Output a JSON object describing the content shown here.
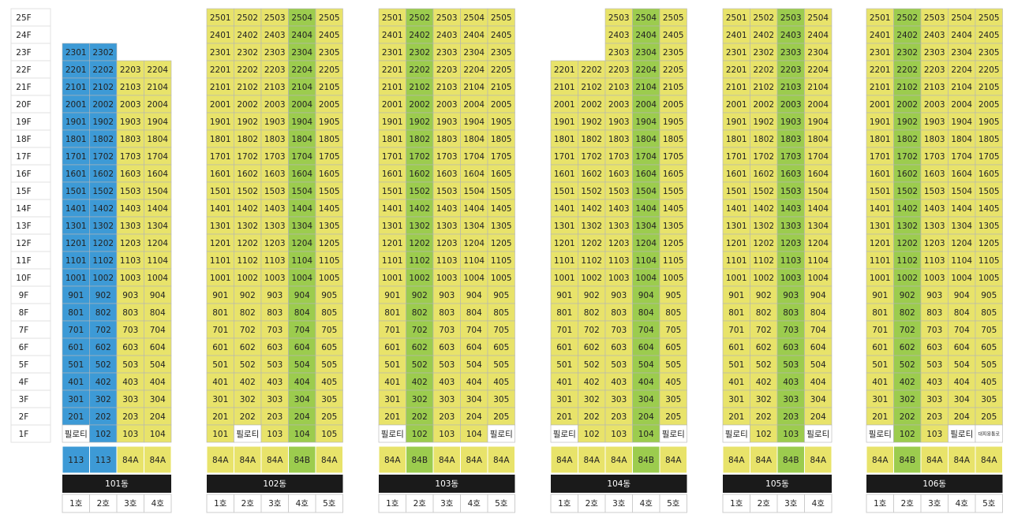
{
  "floors": [
    "25F",
    "24F",
    "23F",
    "22F",
    "21F",
    "20F",
    "19F",
    "18F",
    "17F",
    "16F",
    "15F",
    "14F",
    "13F",
    "12F",
    "11F",
    "10F",
    "9F",
    "8F",
    "7F",
    "6F",
    "5F",
    "4F",
    "3F",
    "2F",
    "1F"
  ],
  "buildings": [
    {
      "name": "101동",
      "columns": [
        {
          "line": "1호",
          "type": "113",
          "color": "#3d9ad6"
        },
        {
          "line": "2호",
          "type": "113",
          "color": "#3d9ad6"
        },
        {
          "line": "3호",
          "type": "84A",
          "color": "#e8e36a"
        },
        {
          "line": "4호",
          "type": "84A",
          "color": "#e8e36a"
        }
      ],
      "rows": [
        [
          null,
          null,
          null,
          null
        ],
        [
          null,
          null,
          null,
          null
        ],
        [
          2301,
          2302,
          null,
          null
        ],
        [
          2201,
          2202,
          2203,
          2204
        ],
        [
          2101,
          2102,
          2103,
          2104
        ],
        [
          2001,
          2002,
          2003,
          2004
        ],
        [
          1901,
          1902,
          1903,
          1904
        ],
        [
          1801,
          1802,
          1803,
          1804
        ],
        [
          1701,
          1702,
          1703,
          1704
        ],
        [
          1601,
          1602,
          1603,
          1604
        ],
        [
          1501,
          1502,
          1503,
          1504
        ],
        [
          1401,
          1402,
          1403,
          1404
        ],
        [
          1301,
          1302,
          1303,
          1304
        ],
        [
          1201,
          1202,
          1203,
          1204
        ],
        [
          1101,
          1102,
          1103,
          1104
        ],
        [
          1001,
          1002,
          1003,
          1004
        ],
        [
          901,
          902,
          903,
          904
        ],
        [
          801,
          802,
          803,
          804
        ],
        [
          701,
          702,
          703,
          704
        ],
        [
          601,
          602,
          603,
          604
        ],
        [
          501,
          502,
          503,
          504
        ],
        [
          401,
          402,
          403,
          404
        ],
        [
          301,
          302,
          303,
          304
        ],
        [
          201,
          202,
          203,
          204
        ],
        [
          "필로티",
          102,
          103,
          104
        ]
      ]
    },
    {
      "name": "102동",
      "columns": [
        {
          "line": "1호",
          "type": "84A",
          "color": "#e8e36a"
        },
        {
          "line": "2호",
          "type": "84A",
          "color": "#e8e36a"
        },
        {
          "line": "3호",
          "type": "84A",
          "color": "#e8e36a"
        },
        {
          "line": "4호",
          "type": "84B",
          "color": "#9ccc4e"
        },
        {
          "line": "5호",
          "type": "84A",
          "color": "#e8e36a"
        }
      ],
      "rows": [
        [
          2501,
          2502,
          2503,
          2504,
          2505
        ],
        [
          2401,
          2402,
          2403,
          2404,
          2405
        ],
        [
          2301,
          2302,
          2303,
          2304,
          2305
        ],
        [
          2201,
          2202,
          2203,
          2204,
          2205
        ],
        [
          2101,
          2102,
          2103,
          2104,
          2105
        ],
        [
          2001,
          2002,
          2003,
          2004,
          2005
        ],
        [
          1901,
          1902,
          1903,
          1904,
          1905
        ],
        [
          1801,
          1802,
          1803,
          1804,
          1805
        ],
        [
          1701,
          1702,
          1703,
          1704,
          1705
        ],
        [
          1601,
          1602,
          1603,
          1604,
          1605
        ],
        [
          1501,
          1502,
          1503,
          1504,
          1505
        ],
        [
          1401,
          1402,
          1403,
          1404,
          1405
        ],
        [
          1301,
          1302,
          1303,
          1304,
          1305
        ],
        [
          1201,
          1202,
          1203,
          1204,
          1205
        ],
        [
          1101,
          1102,
          1103,
          1104,
          1105
        ],
        [
          1001,
          1002,
          1003,
          1004,
          1005
        ],
        [
          901,
          902,
          903,
          904,
          905
        ],
        [
          801,
          802,
          803,
          804,
          805
        ],
        [
          701,
          702,
          703,
          704,
          705
        ],
        [
          601,
          602,
          603,
          604,
          605
        ],
        [
          501,
          502,
          503,
          504,
          505
        ],
        [
          401,
          402,
          403,
          404,
          405
        ],
        [
          301,
          302,
          303,
          304,
          305
        ],
        [
          201,
          202,
          203,
          204,
          205
        ],
        [
          101,
          "필로티",
          103,
          104,
          105
        ]
      ]
    },
    {
      "name": "103동",
      "columns": [
        {
          "line": "1호",
          "type": "84A",
          "color": "#e8e36a"
        },
        {
          "line": "2호",
          "type": "84B",
          "color": "#9ccc4e"
        },
        {
          "line": "3호",
          "type": "84A",
          "color": "#e8e36a"
        },
        {
          "line": "4호",
          "type": "84A",
          "color": "#e8e36a"
        },
        {
          "line": "5호",
          "type": "84A",
          "color": "#e8e36a"
        }
      ],
      "rows": [
        [
          2501,
          2502,
          2503,
          2504,
          2505
        ],
        [
          2401,
          2402,
          2403,
          2404,
          2405
        ],
        [
          2301,
          2302,
          2303,
          2304,
          2305
        ],
        [
          2201,
          2202,
          2203,
          2204,
          2205
        ],
        [
          2101,
          2102,
          2103,
          2104,
          2105
        ],
        [
          2001,
          2002,
          2003,
          2004,
          2005
        ],
        [
          1901,
          1902,
          1903,
          1904,
          1905
        ],
        [
          1801,
          1802,
          1803,
          1804,
          1805
        ],
        [
          1701,
          1702,
          1703,
          1704,
          1705
        ],
        [
          1601,
          1602,
          1603,
          1604,
          1605
        ],
        [
          1501,
          1502,
          1503,
          1504,
          1505
        ],
        [
          1401,
          1402,
          1403,
          1404,
          1405
        ],
        [
          1301,
          1302,
          1303,
          1304,
          1305
        ],
        [
          1201,
          1202,
          1203,
          1204,
          1205
        ],
        [
          1101,
          1102,
          1103,
          1104,
          1105
        ],
        [
          1001,
          1002,
          1003,
          1004,
          1005
        ],
        [
          901,
          902,
          903,
          904,
          905
        ],
        [
          801,
          802,
          803,
          804,
          805
        ],
        [
          701,
          702,
          703,
          704,
          705
        ],
        [
          601,
          602,
          603,
          604,
          605
        ],
        [
          501,
          502,
          503,
          504,
          505
        ],
        [
          401,
          402,
          403,
          404,
          405
        ],
        [
          301,
          302,
          303,
          304,
          305
        ],
        [
          201,
          202,
          203,
          204,
          205
        ],
        [
          "필로티",
          102,
          103,
          104,
          "필로티"
        ]
      ]
    },
    {
      "name": "104동",
      "columns": [
        {
          "line": "1호",
          "type": "84A",
          "color": "#e8e36a"
        },
        {
          "line": "2호",
          "type": "84A",
          "color": "#e8e36a"
        },
        {
          "line": "3호",
          "type": "84A",
          "color": "#e8e36a"
        },
        {
          "line": "4호",
          "type": "84B",
          "color": "#9ccc4e"
        },
        {
          "line": "5호",
          "type": "84A",
          "color": "#e8e36a"
        }
      ],
      "rows": [
        [
          null,
          null,
          2503,
          2504,
          2505
        ],
        [
          null,
          null,
          2403,
          2404,
          2405
        ],
        [
          null,
          null,
          2303,
          2304,
          2305
        ],
        [
          2201,
          2202,
          2203,
          2204,
          2205
        ],
        [
          2101,
          2102,
          2103,
          2104,
          2105
        ],
        [
          2001,
          2002,
          2003,
          2004,
          2005
        ],
        [
          1901,
          1902,
          1903,
          1904,
          1905
        ],
        [
          1801,
          1802,
          1803,
          1804,
          1805
        ],
        [
          1701,
          1702,
          1703,
          1704,
          1705
        ],
        [
          1601,
          1602,
          1603,
          1604,
          1605
        ],
        [
          1501,
          1502,
          1503,
          1504,
          1505
        ],
        [
          1401,
          1402,
          1403,
          1404,
          1405
        ],
        [
          1301,
          1302,
          1303,
          1304,
          1305
        ],
        [
          1201,
          1202,
          1203,
          1204,
          1205
        ],
        [
          1101,
          1102,
          1103,
          1104,
          1105
        ],
        [
          1001,
          1002,
          1003,
          1004,
          1005
        ],
        [
          901,
          902,
          903,
          904,
          905
        ],
        [
          801,
          802,
          803,
          804,
          805
        ],
        [
          701,
          702,
          703,
          704,
          705
        ],
        [
          601,
          602,
          603,
          604,
          605
        ],
        [
          501,
          502,
          503,
          504,
          505
        ],
        [
          401,
          402,
          403,
          404,
          405
        ],
        [
          301,
          302,
          303,
          304,
          305
        ],
        [
          201,
          202,
          203,
          204,
          205
        ],
        [
          "필로티",
          102,
          103,
          104,
          "필로티"
        ]
      ]
    },
    {
      "name": "105동",
      "columns": [
        {
          "line": "1호",
          "type": "84A",
          "color": "#e8e36a"
        },
        {
          "line": "2호",
          "type": "84A",
          "color": "#e8e36a"
        },
        {
          "line": "3호",
          "type": "84B",
          "color": "#9ccc4e"
        },
        {
          "line": "4호",
          "type": "84A",
          "color": "#e8e36a"
        }
      ],
      "rows": [
        [
          2501,
          2502,
          2503,
          2504
        ],
        [
          2401,
          2402,
          2403,
          2404
        ],
        [
          2301,
          2302,
          2303,
          2304
        ],
        [
          2201,
          2202,
          2203,
          2204
        ],
        [
          2101,
          2102,
          2103,
          2104
        ],
        [
          2001,
          2002,
          2003,
          2004
        ],
        [
          1901,
          1902,
          1903,
          1904
        ],
        [
          1801,
          1802,
          1803,
          1804
        ],
        [
          1701,
          1702,
          1703,
          1704
        ],
        [
          1601,
          1602,
          1603,
          1604
        ],
        [
          1501,
          1502,
          1503,
          1504
        ],
        [
          1401,
          1402,
          1403,
          1404
        ],
        [
          1301,
          1302,
          1303,
          1304
        ],
        [
          1201,
          1202,
          1203,
          1204
        ],
        [
          1101,
          1102,
          1103,
          1104
        ],
        [
          1001,
          1002,
          1003,
          1004
        ],
        [
          901,
          902,
          903,
          904
        ],
        [
          801,
          802,
          803,
          804
        ],
        [
          701,
          702,
          703,
          704
        ],
        [
          601,
          602,
          603,
          604
        ],
        [
          501,
          502,
          503,
          504
        ],
        [
          401,
          402,
          403,
          404
        ],
        [
          301,
          302,
          303,
          304
        ],
        [
          201,
          202,
          203,
          204
        ],
        [
          "필로티",
          102,
          103,
          "필로티"
        ]
      ]
    },
    {
      "name": "106동",
      "columns": [
        {
          "line": "1호",
          "type": "84A",
          "color": "#e8e36a"
        },
        {
          "line": "2호",
          "type": "84B",
          "color": "#9ccc4e"
        },
        {
          "line": "3호",
          "type": "84A",
          "color": "#e8e36a"
        },
        {
          "line": "4호",
          "type": "84A",
          "color": "#e8e36a"
        },
        {
          "line": "5호",
          "type": "84A",
          "color": "#e8e36a"
        }
      ],
      "rows": [
        [
          2501,
          2502,
          2503,
          2504,
          2505
        ],
        [
          2401,
          2402,
          2403,
          2404,
          2405
        ],
        [
          2301,
          2302,
          2303,
          2304,
          2305
        ],
        [
          2201,
          2202,
          2203,
          2204,
          2205
        ],
        [
          2101,
          2102,
          2103,
          2104,
          2105
        ],
        [
          2001,
          2002,
          2003,
          2004,
          2005
        ],
        [
          1901,
          1902,
          1903,
          1904,
          1905
        ],
        [
          1801,
          1802,
          1803,
          1804,
          1805
        ],
        [
          1701,
          1702,
          1703,
          1704,
          1705
        ],
        [
          1601,
          1602,
          1603,
          1604,
          1605
        ],
        [
          1501,
          1502,
          1503,
          1504,
          1505
        ],
        [
          1401,
          1402,
          1403,
          1404,
          1405
        ],
        [
          1301,
          1302,
          1303,
          1304,
          1305
        ],
        [
          1201,
          1202,
          1203,
          1204,
          1205
        ],
        [
          1101,
          1102,
          1103,
          1104,
          1105
        ],
        [
          1001,
          1002,
          1003,
          1004,
          1005
        ],
        [
          901,
          902,
          903,
          904,
          905
        ],
        [
          801,
          802,
          803,
          804,
          805
        ],
        [
          701,
          702,
          703,
          704,
          705
        ],
        [
          601,
          602,
          603,
          604,
          605
        ],
        [
          501,
          502,
          503,
          504,
          505
        ],
        [
          401,
          402,
          403,
          404,
          405
        ],
        [
          301,
          302,
          303,
          304,
          305
        ],
        [
          201,
          202,
          203,
          204,
          205
        ],
        [
          "필로티",
          102,
          103,
          "필로티",
          "대피용통로"
        ]
      ]
    }
  ]
}
